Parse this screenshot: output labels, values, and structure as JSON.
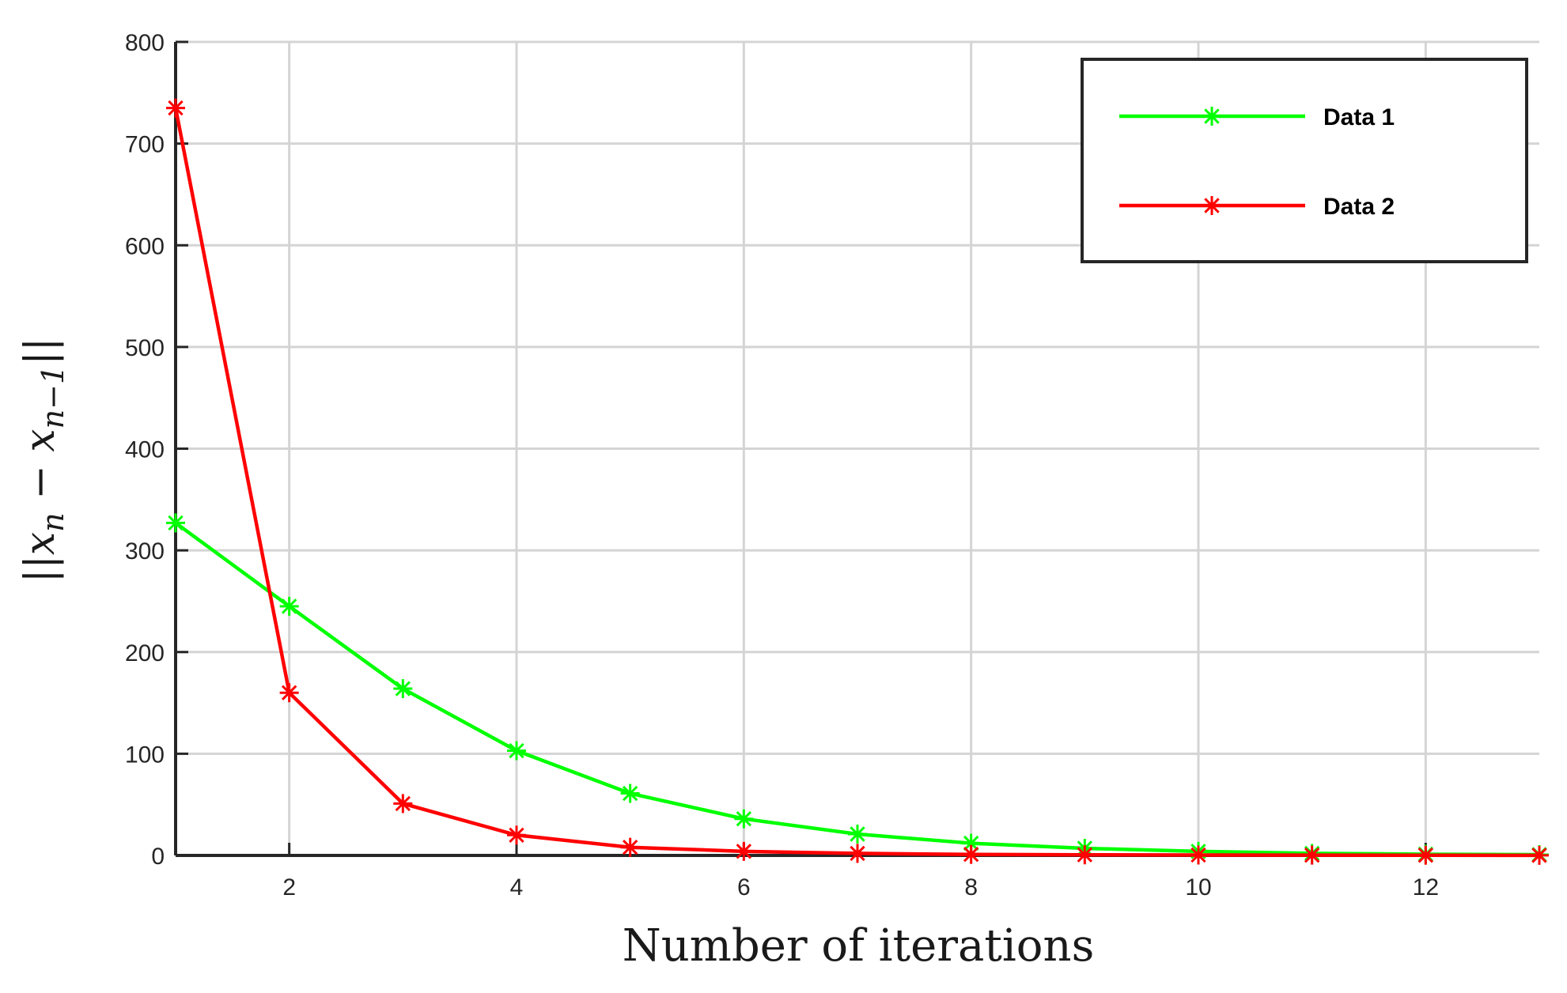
{
  "chart_data": {
    "type": "line",
    "xlabel": "Number of iterations",
    "ylabel": "||x_n − x_{n−1}||",
    "ylabel_parts": {
      "open": "||x",
      "sub1": "n",
      "minus": " − x",
      "sub2": "n−1",
      "close": "||"
    },
    "xlim": [
      1,
      13
    ],
    "ylim": [
      0,
      800
    ],
    "xticks": [
      2,
      4,
      6,
      8,
      10,
      12
    ],
    "yticks": [
      0,
      100,
      200,
      300,
      400,
      500,
      600,
      700,
      800
    ],
    "grid": true,
    "legend_position": "top-right",
    "x": [
      1,
      2,
      3,
      4,
      5,
      6,
      7,
      8,
      9,
      10,
      11,
      12,
      13
    ],
    "series": [
      {
        "name": "Data  1",
        "color": "#00ff00",
        "marker": "asterisk",
        "values": [
          327,
          245,
          164,
          103,
          61,
          36,
          21,
          12,
          7,
          4,
          2,
          1.2,
          0.8
        ]
      },
      {
        "name": "Data  2",
        "color": "#ff0000",
        "marker": "asterisk",
        "values": [
          735,
          160,
          51,
          20,
          8,
          4,
          2,
          1,
          0.6,
          0.4,
          0.3,
          0.2,
          0.1
        ]
      }
    ]
  }
}
